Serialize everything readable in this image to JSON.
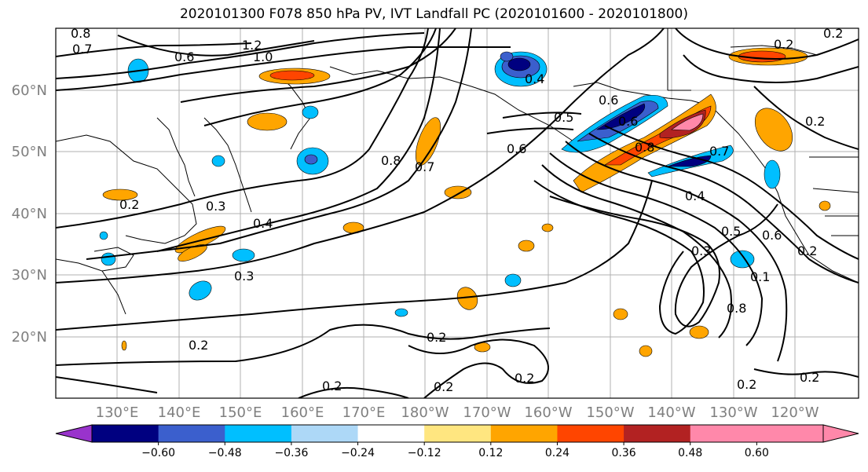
{
  "title": "2020101300 F078 850 hPa PV, IVT Landfall PC (2020101600 - 2020101800)",
  "lat_labels": [
    "60°N",
    "50°N",
    "40°N",
    "30°N",
    "20°N"
  ],
  "lon_labels": [
    "130°E",
    "140°E",
    "150°E",
    "160°E",
    "170°E",
    "180°W",
    "170°W",
    "160°W",
    "150°W",
    "140°W",
    "130°W",
    "120°W"
  ],
  "contour_labels": [
    "0.8",
    "0.7",
    "0.6",
    "1.2",
    "1.0",
    "0.4",
    "0.6",
    "0.5",
    "0.6",
    "0.8",
    "0.7",
    "0.8",
    "0.6",
    "0.7",
    "0.2",
    "0.4",
    "0.5",
    "0.6",
    "0.3",
    "0.1",
    "0.8",
    "0.2",
    "0.2",
    "0.3",
    "0.4",
    "0.3",
    "0.2",
    "0.2",
    "0.2",
    "0.2",
    "0.2",
    "0.2",
    "0.2",
    "0.2",
    "0.2"
  ],
  "colorbar": {
    "ticks": [
      "−0.60",
      "−0.48",
      "−0.36",
      "−0.24",
      "−0.12",
      "0.12",
      "0.24",
      "0.36",
      "0.48",
      "0.60"
    ],
    "colors": [
      "#9933cc",
      "#000080",
      "#3b5fcd",
      "#00bfff",
      "#add8f7",
      "#ffffff",
      "#ffe680",
      "#ffa500",
      "#ff4500",
      "#b22222",
      "#ff88aa",
      "#ff88aa"
    ]
  }
}
